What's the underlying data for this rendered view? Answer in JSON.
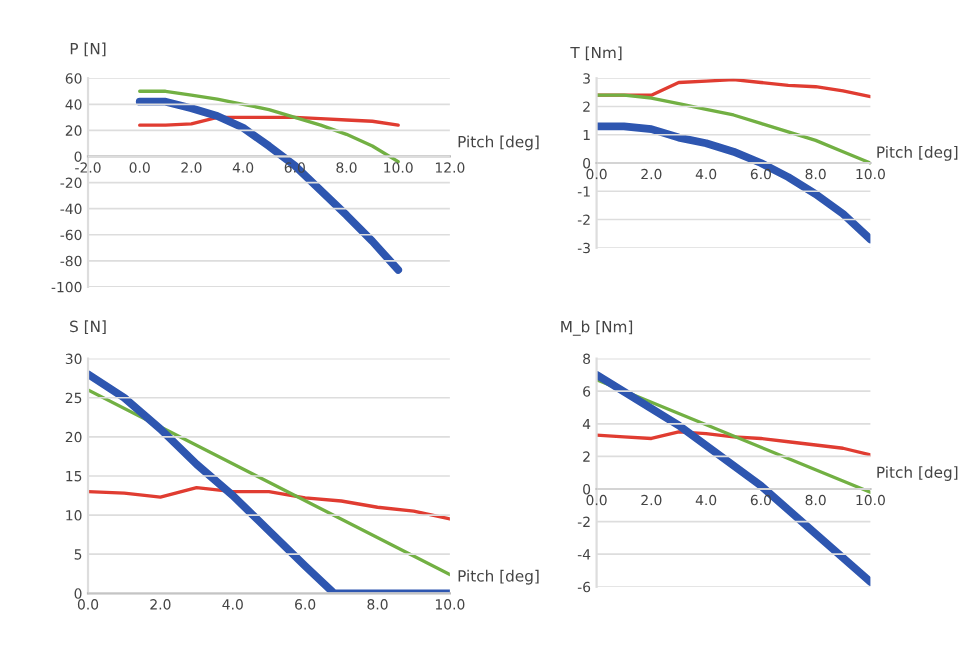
{
  "chart_data": [
    {
      "type": "line",
      "ylabel": "P [N]",
      "xlabel": "Pitch [deg]",
      "xlim": [
        -2,
        12
      ],
      "xticks": [
        {
          "value": -2,
          "label": "-2.0"
        },
        {
          "value": 0,
          "label": "0.0"
        },
        {
          "value": 2,
          "label": "2.0"
        },
        {
          "value": 4,
          "label": "4.0"
        },
        {
          "value": 6,
          "label": "6.0"
        },
        {
          "value": 8,
          "label": "8.0"
        },
        {
          "value": 10,
          "label": "10.0"
        },
        {
          "value": 12,
          "label": "12.0"
        }
      ],
      "ylim": [
        -100,
        60
      ],
      "yticks": [
        -100,
        -80,
        -60,
        -40,
        -20,
        0,
        20,
        40,
        60
      ],
      "grid": "y",
      "x": [
        0,
        1,
        2,
        3,
        4,
        5,
        6,
        7,
        8,
        9,
        10
      ],
      "series": [
        {
          "color": "#e03c31",
          "values": [
            24,
            24,
            25,
            30,
            30,
            30,
            30,
            29,
            28,
            27,
            24
          ]
        },
        {
          "color": "#72b043",
          "values": [
            50,
            50,
            47,
            44,
            40,
            36,
            30,
            24,
            17,
            8,
            -4
          ]
        },
        {
          "color": "#2e56b0",
          "values": [
            42,
            42,
            37,
            31,
            22,
            8,
            -7,
            -26,
            -45,
            -65,
            -87
          ]
        }
      ]
    },
    {
      "type": "line",
      "ylabel": "T [Nm]",
      "xlabel": "Pitch [deg]",
      "xlim": [
        0,
        10
      ],
      "xticks": [
        {
          "value": 0,
          "label": "0.0"
        },
        {
          "value": 2,
          "label": "2.0"
        },
        {
          "value": 4,
          "label": "4.0"
        },
        {
          "value": 6,
          "label": "6.0"
        },
        {
          "value": 8,
          "label": "8.0"
        },
        {
          "value": 10,
          "label": "10.0"
        }
      ],
      "ylim": [
        -3,
        3
      ],
      "yticks": [
        -3,
        -2,
        -1,
        0,
        1,
        2,
        3
      ],
      "grid": "y",
      "x": [
        0,
        1,
        2,
        3,
        4,
        5,
        6,
        7,
        8,
        9,
        10
      ],
      "series": [
        {
          "color": "#e03c31",
          "values": [
            2.4,
            2.4,
            2.4,
            2.85,
            2.9,
            2.95,
            2.85,
            2.75,
            2.7,
            2.55,
            2.35
          ]
        },
        {
          "color": "#72b043",
          "values": [
            2.4,
            2.4,
            2.3,
            2.1,
            1.9,
            1.7,
            1.4,
            1.1,
            0.8,
            0.4,
            0
          ]
        },
        {
          "color": "#2e56b0",
          "values": [
            1.3,
            1.3,
            1.2,
            0.9,
            0.7,
            0.4,
            0,
            -0.5,
            -1.1,
            -1.8,
            -2.7
          ]
        }
      ]
    },
    {
      "type": "line",
      "ylabel": "S [N]",
      "xlabel": "Pitch [deg]",
      "xlim": [
        0,
        10
      ],
      "xticks": [
        {
          "value": 0,
          "label": "0.0"
        },
        {
          "value": 2,
          "label": "2.0"
        },
        {
          "value": 4,
          "label": "4.0"
        },
        {
          "value": 6,
          "label": "6.0"
        },
        {
          "value": 8,
          "label": "8.0"
        },
        {
          "value": 10,
          "label": "10.0"
        }
      ],
      "ylim": [
        0,
        30
      ],
      "yticks": [
        0,
        5,
        10,
        15,
        20,
        25,
        30
      ],
      "grid": "y",
      "x": [
        0,
        1,
        2,
        3,
        4,
        5,
        6,
        7,
        8,
        9,
        10
      ],
      "series": [
        {
          "color": "#e03c31",
          "values": [
            13,
            12.8,
            12.3,
            13.5,
            13,
            13,
            12.2,
            11.8,
            11,
            10.5,
            9.5
          ]
        },
        {
          "color": "#72b043",
          "x": [
            0,
            10
          ],
          "values": [
            26,
            2.4
          ]
        },
        {
          "color": "#2e56b0",
          "x": [
            0,
            1,
            2,
            3,
            4,
            5,
            6,
            6.8,
            8,
            10
          ],
          "values": [
            28,
            25,
            21,
            16.5,
            12.5,
            8,
            3.5,
            0,
            0,
            0
          ]
        }
      ]
    },
    {
      "type": "line",
      "ylabel": "M_b [Nm]",
      "xlabel": "Pitch [deg]",
      "xlim": [
        0,
        10
      ],
      "xticks": [
        {
          "value": 0,
          "label": "0.0"
        },
        {
          "value": 2,
          "label": "2.0"
        },
        {
          "value": 4,
          "label": "4.0"
        },
        {
          "value": 6,
          "label": "6.0"
        },
        {
          "value": 8,
          "label": "8.0"
        },
        {
          "value": 10,
          "label": "10.0"
        }
      ],
      "ylim": [
        -6,
        8
      ],
      "yticks": [
        -6,
        -4,
        -2,
        0,
        2,
        4,
        6,
        8
      ],
      "grid": "y",
      "x": [
        0,
        1,
        2,
        3,
        4,
        5,
        6,
        7,
        8,
        9,
        10
      ],
      "series": [
        {
          "color": "#e03c31",
          "values": [
            3.3,
            3.2,
            3.1,
            3.5,
            3.4,
            3.2,
            3.1,
            2.9,
            2.7,
            2.5,
            2.1
          ]
        },
        {
          "color": "#72b043",
          "x": [
            0,
            10
          ],
          "values": [
            6.7,
            -0.2
          ]
        },
        {
          "color": "#2e56b0",
          "x": [
            0,
            3,
            6,
            10
          ],
          "values": [
            7,
            3.9,
            0.2,
            -5.7
          ]
        }
      ]
    }
  ]
}
